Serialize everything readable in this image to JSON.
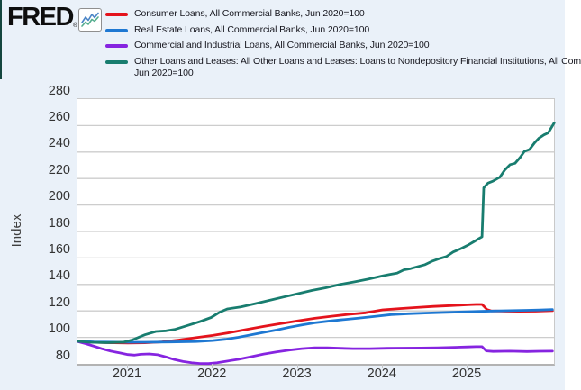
{
  "header": {
    "logo_text": "FRED",
    "logo_registered": "®",
    "logo_chart_icon": "line-chart-icon"
  },
  "legend": {
    "items": [
      {
        "label": "Consumer Loans, All Commercial Banks, Jun 2020=100",
        "color": "#e4131c",
        "id": "consumer-loans"
      },
      {
        "label": "Real Estate Loans, All Commercial Banks, Jun 2020=100",
        "color": "#1e78d2",
        "id": "real-estate-loans"
      },
      {
        "label": "Commercial and Industrial Loans, All Commercial Banks, Jun 2020=100",
        "color": "#8624e0",
        "id": "commercial-industrial-loans"
      },
      {
        "label": "Other Loans and Leases: All Other Loans and Leases: Loans to Nondepository Financial Institutions, All Com",
        "label_line2": "Jun 2020=100",
        "color": "#187d6f",
        "id": "other-loans-nondepository"
      }
    ]
  },
  "chart_data": {
    "type": "line",
    "ylabel": "Index",
    "xlabel": "",
    "ylim": [
      80,
      280
    ],
    "xlim": [
      2020.41,
      2026.02
    ],
    "grid": "horizontal",
    "legend_position": "top",
    "y_ticks": [
      280,
      260,
      240,
      220,
      200,
      180,
      160,
      140,
      120,
      100,
      80
    ],
    "x_ticks": [
      {
        "year": 2021,
        "label": "2021"
      },
      {
        "year": 2022,
        "label": "2022"
      },
      {
        "year": 2023,
        "label": "2023"
      },
      {
        "year": 2024,
        "label": "2024"
      },
      {
        "year": 2025,
        "label": "2025"
      }
    ],
    "series": [
      {
        "name": "Consumer Loans, All Commercial Banks, Jun 2020=100",
        "id": "consumer-loans",
        "color": "#e4131c",
        "points": [
          [
            2020.41,
            97.0
          ],
          [
            2020.6,
            96.3
          ],
          [
            2020.8,
            95.9
          ],
          [
            2021.0,
            95.8
          ],
          [
            2021.2,
            95.9
          ],
          [
            2021.4,
            96.6
          ],
          [
            2021.6,
            98.0
          ],
          [
            2021.8,
            99.8
          ],
          [
            2022.0,
            101.5
          ],
          [
            2022.2,
            103.6
          ],
          [
            2022.4,
            106.0
          ],
          [
            2022.6,
            108.3
          ],
          [
            2022.8,
            110.5
          ],
          [
            2023.0,
            112.5
          ],
          [
            2023.2,
            114.4
          ],
          [
            2023.4,
            116.0
          ],
          [
            2023.6,
            117.4
          ],
          [
            2023.8,
            118.6
          ],
          [
            2024.0,
            120.8
          ],
          [
            2024.2,
            121.8
          ],
          [
            2024.4,
            122.6
          ],
          [
            2024.6,
            123.4
          ],
          [
            2024.8,
            124.0
          ],
          [
            2025.0,
            124.6
          ],
          [
            2025.1,
            124.9
          ],
          [
            2025.17,
            124.9
          ],
          [
            2025.23,
            121.0
          ],
          [
            2025.28,
            120.0
          ],
          [
            2025.45,
            119.8
          ],
          [
            2025.6,
            119.7
          ],
          [
            2025.8,
            119.8
          ],
          [
            2026.0,
            120.2
          ]
        ]
      },
      {
        "name": "Real Estate Loans, All Commercial Banks, Jun 2020=100",
        "id": "real-estate-loans",
        "color": "#1e78d2",
        "points": [
          [
            2020.41,
            97.2
          ],
          [
            2020.6,
            96.6
          ],
          [
            2020.9,
            96.3
          ],
          [
            2021.2,
            96.3
          ],
          [
            2021.5,
            96.5
          ],
          [
            2021.8,
            96.9
          ],
          [
            2022.0,
            97.6
          ],
          [
            2022.15,
            98.6
          ],
          [
            2022.3,
            100.1
          ],
          [
            2022.45,
            101.9
          ],
          [
            2022.6,
            103.8
          ],
          [
            2022.75,
            105.6
          ],
          [
            2022.9,
            107.6
          ],
          [
            2023.05,
            109.4
          ],
          [
            2023.2,
            111.0
          ],
          [
            2023.35,
            112.2
          ],
          [
            2023.5,
            113.2
          ],
          [
            2023.7,
            114.4
          ],
          [
            2023.9,
            115.8
          ],
          [
            2024.1,
            117.2
          ],
          [
            2024.3,
            117.9
          ],
          [
            2024.5,
            118.4
          ],
          [
            2024.7,
            118.8
          ],
          [
            2024.9,
            119.2
          ],
          [
            2025.1,
            119.6
          ],
          [
            2025.3,
            119.9
          ],
          [
            2025.5,
            120.2
          ],
          [
            2025.7,
            120.5
          ],
          [
            2025.85,
            120.7
          ],
          [
            2026.0,
            121.0
          ]
        ]
      },
      {
        "name": "Commercial and Industrial Loans, All Commercial Banks, Jun 2020=100",
        "id": "commercial-industrial-loans",
        "color": "#8624e0",
        "points": [
          [
            2020.41,
            96.8
          ],
          [
            2020.5,
            95.3
          ],
          [
            2020.6,
            93.3
          ],
          [
            2020.7,
            91.3
          ],
          [
            2020.8,
            89.6
          ],
          [
            2020.9,
            88.3
          ],
          [
            2021.0,
            87.0
          ],
          [
            2021.08,
            86.6
          ],
          [
            2021.15,
            87.2
          ],
          [
            2021.25,
            87.5
          ],
          [
            2021.35,
            86.9
          ],
          [
            2021.45,
            85.2
          ],
          [
            2021.55,
            83.2
          ],
          [
            2021.65,
            81.8
          ],
          [
            2021.75,
            80.8
          ],
          [
            2021.85,
            80.3
          ],
          [
            2021.95,
            80.2
          ],
          [
            2022.05,
            80.8
          ],
          [
            2022.15,
            81.9
          ],
          [
            2022.3,
            83.4
          ],
          [
            2022.45,
            85.4
          ],
          [
            2022.6,
            87.4
          ],
          [
            2022.75,
            89.0
          ],
          [
            2022.9,
            90.4
          ],
          [
            2023.05,
            91.5
          ],
          [
            2023.2,
            92.2
          ],
          [
            2023.35,
            92.2
          ],
          [
            2023.5,
            91.8
          ],
          [
            2023.65,
            91.5
          ],
          [
            2023.85,
            91.5
          ],
          [
            2024.05,
            91.8
          ],
          [
            2024.25,
            91.9
          ],
          [
            2024.45,
            92.0
          ],
          [
            2024.65,
            92.2
          ],
          [
            2024.85,
            92.5
          ],
          [
            2025.0,
            92.8
          ],
          [
            2025.1,
            93.0
          ],
          [
            2025.17,
            93.0
          ],
          [
            2025.22,
            89.8
          ],
          [
            2025.3,
            89.4
          ],
          [
            2025.5,
            89.6
          ],
          [
            2025.7,
            89.3
          ],
          [
            2025.85,
            89.5
          ],
          [
            2026.0,
            89.6
          ]
        ]
      },
      {
        "name": "Other Loans and Leases: All Other Loans and Leases: Loans to Nondepository Financial Institutions, All Com Jun 2020=100",
        "id": "other-loans-nondepository",
        "color": "#187d6f",
        "points": [
          [
            2020.41,
            97.0
          ],
          [
            2020.55,
            96.3
          ],
          [
            2020.75,
            96.0
          ],
          [
            2020.95,
            96.4
          ],
          [
            2021.05,
            98.0
          ],
          [
            2021.2,
            102.0
          ],
          [
            2021.33,
            104.5
          ],
          [
            2021.45,
            105.0
          ],
          [
            2021.55,
            106.0
          ],
          [
            2021.7,
            109.0
          ],
          [
            2021.85,
            112.0
          ],
          [
            2021.98,
            115.0
          ],
          [
            2022.08,
            119.0
          ],
          [
            2022.17,
            121.5
          ],
          [
            2022.33,
            123.0
          ],
          [
            2022.5,
            125.5
          ],
          [
            2022.67,
            128.0
          ],
          [
            2022.83,
            130.5
          ],
          [
            2023.0,
            133.0
          ],
          [
            2023.17,
            135.5
          ],
          [
            2023.33,
            137.5
          ],
          [
            2023.5,
            140.0
          ],
          [
            2023.67,
            142.0
          ],
          [
            2023.83,
            144.0
          ],
          [
            2024.0,
            146.5
          ],
          [
            2024.08,
            147.5
          ],
          [
            2024.17,
            148.5
          ],
          [
            2024.25,
            151.0
          ],
          [
            2024.33,
            152.0
          ],
          [
            2024.5,
            155.0
          ],
          [
            2024.58,
            157.5
          ],
          [
            2024.67,
            159.5
          ],
          [
            2024.75,
            161.0
          ],
          [
            2024.83,
            164.5
          ],
          [
            2024.92,
            167.0
          ],
          [
            2025.0,
            169.5
          ],
          [
            2025.08,
            172.5
          ],
          [
            2025.13,
            174.5
          ],
          [
            2025.17,
            176.0
          ],
          [
            2025.19,
            213.0
          ],
          [
            2025.24,
            216.5
          ],
          [
            2025.3,
            218.0
          ],
          [
            2025.38,
            221.0
          ],
          [
            2025.44,
            226.5
          ],
          [
            2025.5,
            230.5
          ],
          [
            2025.56,
            231.5
          ],
          [
            2025.62,
            236.0
          ],
          [
            2025.67,
            240.5
          ],
          [
            2025.73,
            242.0
          ],
          [
            2025.79,
            247.0
          ],
          [
            2025.84,
            250.5
          ],
          [
            2025.9,
            253.0
          ],
          [
            2025.95,
            254.5
          ],
          [
            2026.02,
            262.0
          ]
        ]
      }
    ]
  }
}
